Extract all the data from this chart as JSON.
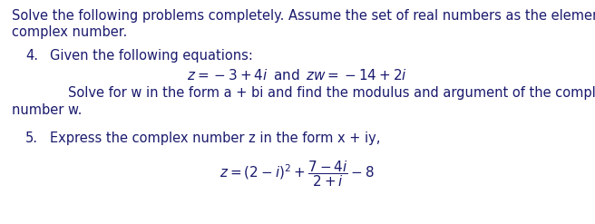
{
  "bg_color": "#ffffff",
  "text_color": "#1a1a6e",
  "figsize": [
    6.56,
    2.47
  ],
  "dpi": 100,
  "intro_line1": "Solve the following problems completely. Assume the set of real numbers as the elements of the",
  "intro_line2": "complex number.",
  "item4_label": "4.",
  "item4_text": "Given the following equations:",
  "item4_solve1": "Solve for w in the form a + bi and find the modulus and argument of the complex",
  "item4_solve2": "number w.",
  "item5_label": "5.",
  "item5_text": "Express the complex number z in the form x + iy,",
  "font_size_body": 10.5,
  "font_size_eq": 11.0
}
